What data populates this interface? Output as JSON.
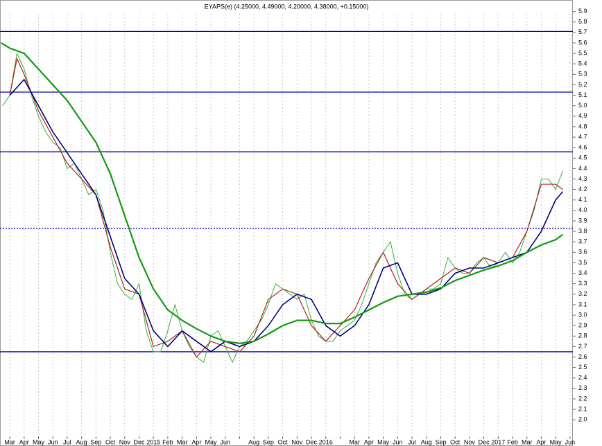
{
  "chart_data": {
    "type": "line",
    "title": "EYAPS(e) (4.25000, 4.49000, 4.20000, 4.38000, +0.15000)",
    "categories": [
      "Mar",
      "Apr",
      "May",
      "Jun",
      "Jul",
      "Aug",
      "Sep",
      "Oct",
      "Nov",
      "Dec",
      "2015",
      "Feb",
      "Mar",
      "Apr",
      "May",
      "Jun",
      null,
      "Aug",
      "Sep",
      "Oct",
      "Nov",
      "Dec",
      "2016",
      null,
      "Mar",
      "Apr",
      "May",
      "Jun",
      "Jul",
      "Aug",
      "Sep",
      "Oct",
      "Nov",
      "Dec",
      "2017",
      "Feb",
      "Mar",
      "Apr",
      "May",
      "Jun"
    ],
    "xlim": [
      -0.68,
      39.2
    ],
    "ylim": [
      1.75,
      6.01
    ],
    "grid": true,
    "yticks": [
      {
        "value": 2,
        "label": "2.0"
      },
      2.1,
      2.2,
      2.3,
      2.4,
      2.5,
      2.6,
      2.7,
      2.8,
      2.9,
      {
        "value": 3,
        "label": "3.0"
      },
      3.1,
      3.2,
      3.3,
      3.4,
      3.5,
      3.6,
      3.7,
      3.8,
      3.9,
      {
        "value": 4,
        "label": "4.0"
      },
      4.1,
      4.2,
      4.3,
      4.4,
      4.5,
      4.6,
      4.7,
      4.8,
      4.9,
      {
        "value": 5,
        "label": "5.0"
      },
      5.1,
      5.2,
      5.3,
      5.4,
      5.5,
      5.6,
      5.7,
      5.8,
      5.9
    ],
    "levels": [
      {
        "value": 5.71,
        "color": "#0000cc"
      },
      {
        "value": 5.13,
        "color": "#0000aa"
      },
      {
        "value": 4.56,
        "color": "#0000cc"
      },
      {
        "value": 3.83,
        "color": "#0000cc",
        "dotted": true
      },
      {
        "value": 2.65,
        "color": "#0000aa"
      }
    ],
    "series": [
      {
        "color": "#33b033",
        "width": 1,
        "x": [
          -0.5,
          0,
          0.5,
          1,
          1.5,
          2,
          2.5,
          3,
          3.5,
          4,
          4.5,
          5,
          5.5,
          6,
          6.5,
          7,
          7.5,
          8,
          8.5,
          9,
          9.5,
          10,
          10.5,
          11,
          11.5,
          12,
          12.5,
          13,
          13.5,
          14,
          14.5,
          15,
          15.5,
          16,
          16.5,
          17,
          17.5,
          18,
          18.5,
          19,
          19.5,
          20,
          20.5,
          21,
          21.5,
          22,
          22.5,
          23,
          23.5,
          24,
          24.5,
          25,
          25.5,
          26,
          26.5,
          27,
          27.5,
          28,
          28.5,
          29,
          29.5,
          30,
          30.5,
          31,
          31.5,
          32,
          32.5,
          33,
          33.5,
          34,
          34.5,
          35,
          35.5,
          36,
          36.5,
          37,
          37.5,
          38,
          38.5
        ],
        "values": [
          5.0,
          5.1,
          5.5,
          5.35,
          5.1,
          4.9,
          4.75,
          4.65,
          4.6,
          4.4,
          4.45,
          4.3,
          4.15,
          4.2,
          4.0,
          3.6,
          3.3,
          3.2,
          3.15,
          3.3,
          2.85,
          2.65,
          2.65,
          2.85,
          3.1,
          2.85,
          2.7,
          2.6,
          2.55,
          2.8,
          2.85,
          2.7,
          2.55,
          2.7,
          2.75,
          2.85,
          2.95,
          3.1,
          3.3,
          3.25,
          3.2,
          3.15,
          3.2,
          2.95,
          2.8,
          2.75,
          2.75,
          2.85,
          2.9,
          2.95,
          3.1,
          3.3,
          3.5,
          3.6,
          3.7,
          3.4,
          3.2,
          3.15,
          3.2,
          3.25,
          3.25,
          3.3,
          3.55,
          3.45,
          3.4,
          3.4,
          3.5,
          3.55,
          3.45,
          3.5,
          3.6,
          3.5,
          3.6,
          3.8,
          4.0,
          4.3,
          4.3,
          4.2,
          4.38
        ]
      },
      {
        "color": "#aa2020",
        "width": 1.2,
        "x": [
          0,
          0.5,
          1,
          2,
          3,
          4,
          5,
          6,
          7,
          8,
          9,
          10,
          11,
          12,
          13,
          14,
          15,
          16,
          17,
          18,
          19,
          20,
          21,
          22,
          23,
          24,
          25,
          26,
          27,
          28,
          29,
          30,
          31,
          32,
          33,
          34,
          35,
          36,
          37,
          38,
          38.5
        ],
        "values": [
          5.1,
          5.45,
          5.3,
          4.95,
          4.7,
          4.45,
          4.3,
          4.15,
          3.65,
          3.25,
          3.2,
          2.7,
          2.75,
          2.85,
          2.6,
          2.75,
          2.7,
          2.65,
          2.8,
          3.15,
          3.25,
          3.2,
          2.9,
          2.75,
          2.9,
          3.05,
          3.35,
          3.6,
          3.3,
          3.15,
          3.25,
          3.35,
          3.45,
          3.4,
          3.55,
          3.5,
          3.55,
          3.8,
          4.25,
          4.25,
          4.2
        ]
      },
      {
        "color": "#000080",
        "width": 1.6,
        "x": [
          0,
          1,
          2,
          3,
          4,
          5,
          6,
          7,
          8,
          9,
          10,
          11,
          12,
          13,
          14,
          15,
          16,
          17,
          18,
          19,
          20,
          21,
          22,
          23,
          24,
          25,
          26,
          27,
          28,
          29,
          30,
          31,
          32,
          33,
          34,
          35,
          36,
          37,
          38,
          38.5
        ],
        "values": [
          5.1,
          5.25,
          5.0,
          4.75,
          4.55,
          4.35,
          4.15,
          3.75,
          3.35,
          3.2,
          2.85,
          2.7,
          2.85,
          2.75,
          2.65,
          2.75,
          2.7,
          2.75,
          2.9,
          3.1,
          3.2,
          3.15,
          2.9,
          2.8,
          2.9,
          3.1,
          3.45,
          3.5,
          3.2,
          3.2,
          3.25,
          3.4,
          3.45,
          3.45,
          3.5,
          3.55,
          3.6,
          3.8,
          4.1,
          4.18
        ]
      },
      {
        "color": "#109a10",
        "width": 2.2,
        "x": [
          -0.6,
          0,
          1,
          2,
          3,
          4,
          5,
          6,
          7,
          8,
          9,
          10,
          11,
          12,
          13,
          14,
          15,
          16,
          17,
          18,
          19,
          20,
          21,
          22,
          23,
          24,
          25,
          26,
          27,
          28,
          29,
          30,
          31,
          32,
          33,
          34,
          35,
          36,
          37,
          38,
          38.5
        ],
        "values": [
          5.6,
          5.55,
          5.5,
          5.35,
          5.2,
          5.05,
          4.85,
          4.65,
          4.35,
          3.95,
          3.55,
          3.25,
          3.05,
          2.95,
          2.87,
          2.8,
          2.75,
          2.73,
          2.75,
          2.82,
          2.9,
          2.95,
          2.95,
          2.92,
          2.92,
          2.98,
          3.05,
          3.12,
          3.18,
          3.2,
          3.22,
          3.26,
          3.33,
          3.38,
          3.43,
          3.47,
          3.52,
          3.6,
          3.67,
          3.72,
          3.77
        ]
      }
    ]
  }
}
